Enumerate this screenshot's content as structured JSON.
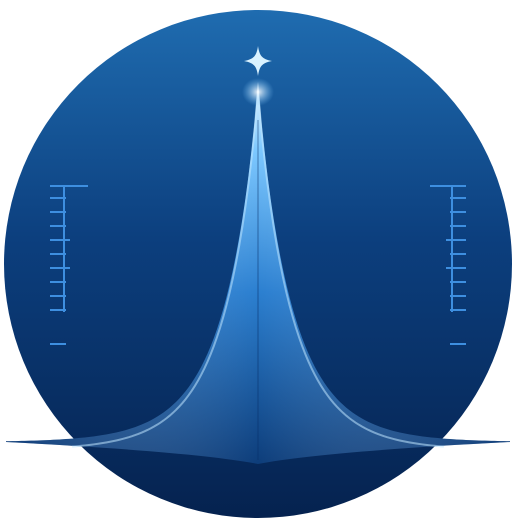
{
  "emblem": {
    "colors": {
      "disc_top": "#1f6cb0",
      "disc_bottom": "#05224f",
      "peak_core": "#e8f7ff",
      "peak_glow": "#7cc8ff",
      "peak_body": "#2b7fd0",
      "peak_edge": "#0d3d7a",
      "scale": "#3e8fe0",
      "star": "#d9f2ff"
    },
    "icons": {
      "star": "sparkle-star-icon",
      "left_scale": "ruler-scale-icon",
      "right_scale": "ruler-scale-icon"
    }
  }
}
